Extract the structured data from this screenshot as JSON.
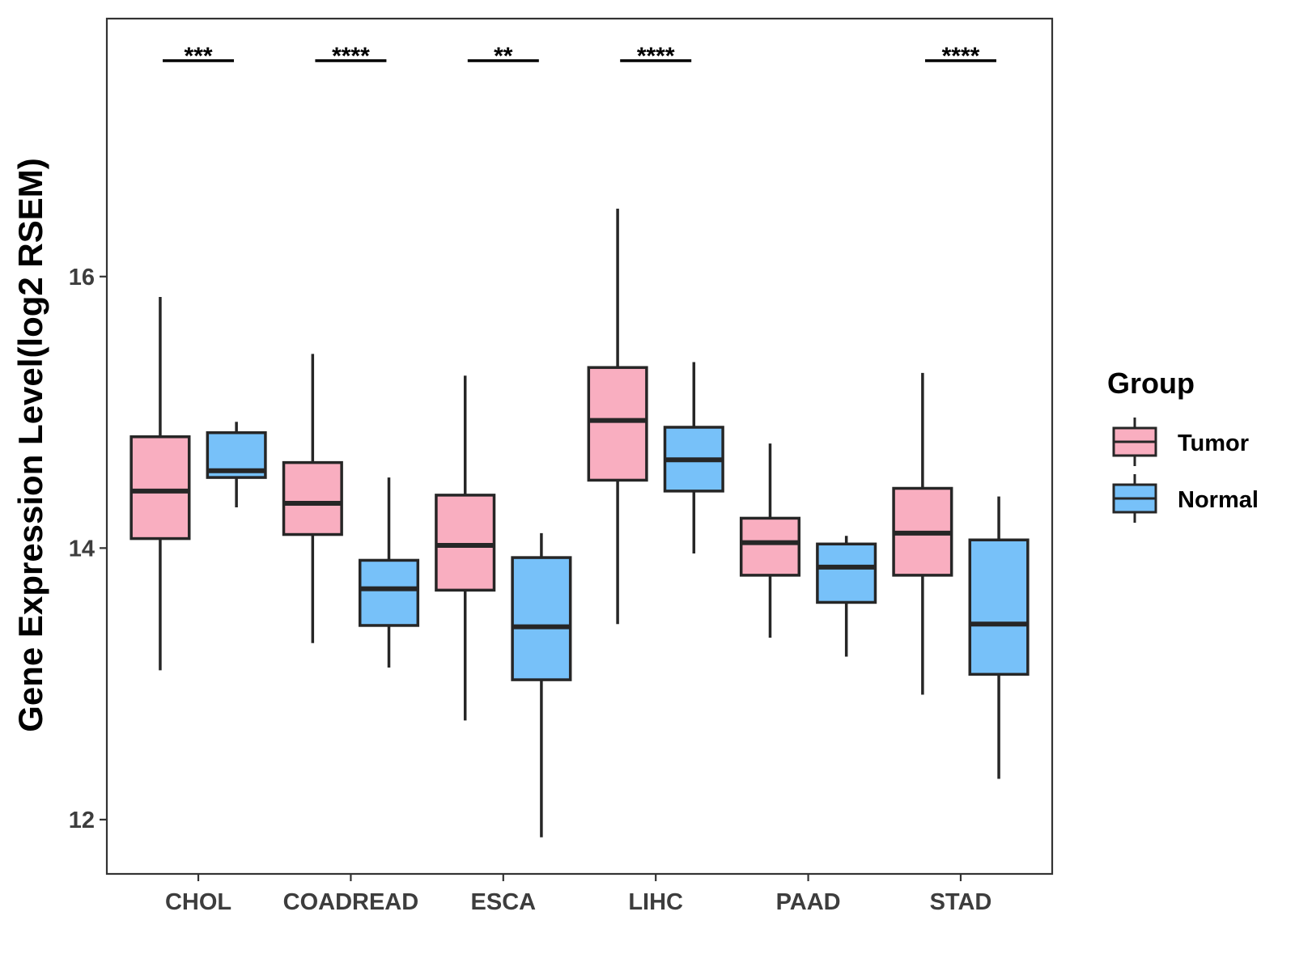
{
  "chart_data": {
    "type": "boxplot",
    "title": "",
    "xlabel": "",
    "ylabel": "Gene Expression Level(log2 RSEM)",
    "ylim": [
      11.6,
      17.9
    ],
    "yticks": [
      12,
      14,
      16
    ],
    "categories": [
      "CHOL",
      "COADREAD",
      "ESCA",
      "LIHC",
      "PAAD",
      "STAD"
    ],
    "legend": {
      "title": "Group",
      "position": "right"
    },
    "series": [
      {
        "name": "Tumor",
        "color": "#F9AEC0",
        "boxes": [
          {
            "whisker_low": 13.1,
            "q1": 14.07,
            "median": 14.42,
            "q3": 14.82,
            "whisker_high": 15.85
          },
          {
            "whisker_low": 13.3,
            "q1": 14.1,
            "median": 14.33,
            "q3": 14.63,
            "whisker_high": 15.43
          },
          {
            "whisker_low": 12.73,
            "q1": 13.69,
            "median": 14.02,
            "q3": 14.39,
            "whisker_high": 15.27
          },
          {
            "whisker_low": 13.44,
            "q1": 14.5,
            "median": 14.94,
            "q3": 15.33,
            "whisker_high": 16.5
          },
          {
            "whisker_low": 13.34,
            "q1": 13.8,
            "median": 14.04,
            "q3": 14.22,
            "whisker_high": 14.77
          },
          {
            "whisker_low": 12.92,
            "q1": 13.8,
            "median": 14.11,
            "q3": 14.44,
            "whisker_high": 15.29
          }
        ]
      },
      {
        "name": "Normal",
        "color": "#77C1F9",
        "boxes": [
          {
            "whisker_low": 14.3,
            "q1": 14.52,
            "median": 14.57,
            "q3": 14.85,
            "whisker_high": 14.93
          },
          {
            "whisker_low": 13.12,
            "q1": 13.43,
            "median": 13.7,
            "q3": 13.91,
            "whisker_high": 14.52
          },
          {
            "whisker_low": 11.87,
            "q1": 13.03,
            "median": 13.42,
            "q3": 13.93,
            "whisker_high": 14.11
          },
          {
            "whisker_low": 13.96,
            "q1": 14.42,
            "median": 14.65,
            "q3": 14.89,
            "whisker_high": 15.37
          },
          {
            "whisker_low": 13.2,
            "q1": 13.6,
            "median": 13.86,
            "q3": 14.03,
            "whisker_high": 14.09
          },
          {
            "whisker_low": 12.3,
            "q1": 13.07,
            "median": 13.44,
            "q3": 14.06,
            "whisker_high": 14.38
          }
        ]
      }
    ],
    "significance": [
      "***",
      "****",
      "**",
      "****",
      "",
      "****"
    ]
  }
}
